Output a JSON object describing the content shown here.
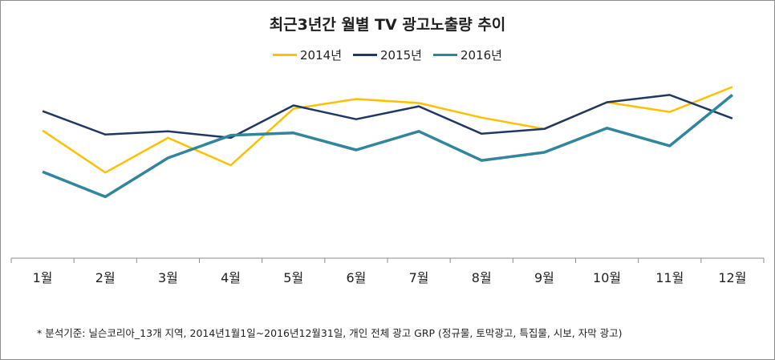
{
  "chart_data": {
    "type": "line",
    "title": "최근3년간 월별 TV 광고노출량 추이",
    "categories": [
      "1월",
      "2월",
      "3월",
      "4월",
      "5월",
      "6월",
      "7월",
      "8월",
      "9월",
      "10월",
      "11월",
      "12월"
    ],
    "series": [
      {
        "name": "2014년",
        "color": "#ffc000",
        "values": [
          158,
          106,
          149,
          115,
          185,
          197,
          192,
          174,
          160,
          193,
          181,
          212
        ]
      },
      {
        "name": "2015년",
        "color": "#1f3864",
        "values": [
          182,
          153,
          157,
          149,
          189,
          172,
          188,
          154,
          160,
          193,
          202,
          173
        ]
      },
      {
        "name": "2016년",
        "color": "#31859c",
        "values": [
          107,
          76,
          124,
          152,
          155,
          134,
          157,
          121,
          131,
          161,
          139,
          202
        ]
      }
    ],
    "ylim": [
      0,
      260
    ],
    "grid": false,
    "legend": "top-center"
  },
  "footnote": "* 분석기준: 닐슨코리아_13개 지역, 2014년1월1일~2016년12월31일,  개인 전체 광고 GRP (정규물, 토막광고, 특집물, 시보, 자막 광고)"
}
